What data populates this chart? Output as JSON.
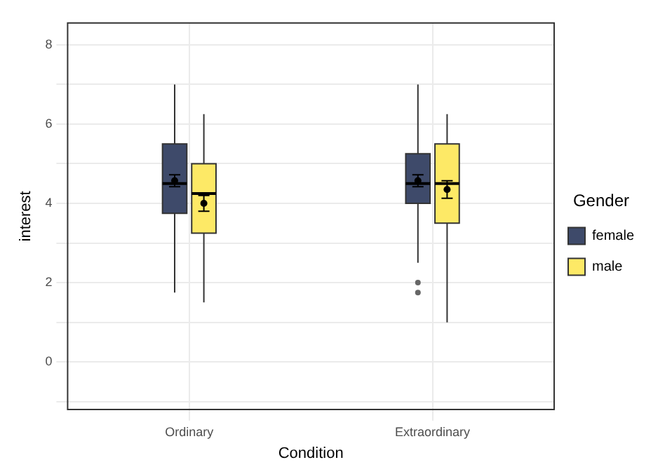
{
  "chart_data": {
    "type": "box",
    "xlabel": "Condition",
    "ylabel": "interest",
    "legend_title": "Gender",
    "categories": [
      "Ordinary",
      "Extraordinary"
    ],
    "ylim": [
      -1.2,
      8.55
    ],
    "yticks": [
      {
        "value": -1,
        "label": null
      },
      0,
      {
        "value": 1,
        "label": null
      },
      2,
      {
        "value": 3,
        "label": null
      },
      4,
      {
        "value": 5,
        "label": null
      },
      6,
      {
        "value": 7,
        "label": null
      },
      8
    ],
    "grid": true,
    "legend": "right",
    "series": [
      {
        "name": "female",
        "color": "#3e4a6a",
        "boxes": [
          {
            "low": 1.75,
            "q1": 3.75,
            "median": 4.5,
            "q3": 5.5,
            "high": 7.0
          },
          {
            "low": 2.5,
            "q1": 4.0,
            "median": 4.5,
            "q3": 5.25,
            "high": 7.0,
            "outliers": [
              2.0,
              1.75
            ]
          }
        ]
      },
      {
        "name": "male",
        "color": "#fde966",
        "boxes": [
          {
            "low": 1.5,
            "q1": 3.25,
            "median": 4.25,
            "q3": 5.0,
            "high": 6.25
          },
          {
            "low": 1.0,
            "q1": 3.5,
            "median": 4.5,
            "q3": 5.5,
            "high": 6.25
          }
        ]
      },
      {
        "type": "scatter",
        "color": "#000000",
        "x": [
          "Ordinary",
          "Extraordinary"
        ],
        "values": [
          4.57,
          4.57
        ],
        "errors": [
          0.15,
          0.15
        ]
      },
      {
        "type": "scatter",
        "color": "#000000",
        "x": [
          "Ordinary",
          "Extraordinary"
        ],
        "values": [
          4.0,
          4.35
        ],
        "errors": [
          0.2,
          0.22
        ]
      }
    ]
  }
}
